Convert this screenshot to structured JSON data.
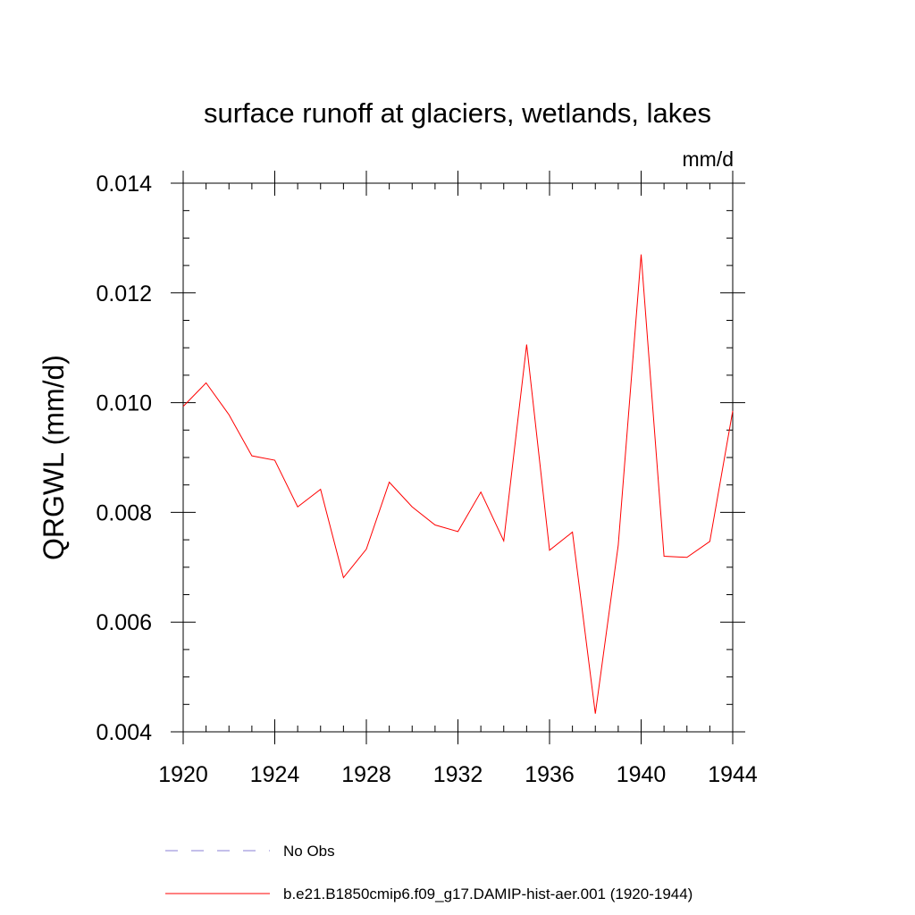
{
  "chart_data": {
    "type": "line",
    "title": "surface runoff at glaciers, wetlands, lakes",
    "units_label": "mm/d",
    "ylabel": "QRGWL  (mm/d)",
    "xlabel": "",
    "xlim": [
      1920,
      1944
    ],
    "ylim": [
      0.004,
      0.014
    ],
    "x_ticks": [
      1920,
      1924,
      1928,
      1932,
      1936,
      1940,
      1944
    ],
    "x_tick_labels": [
      "1920",
      "1924",
      "1928",
      "1932",
      "1936",
      "1940",
      "1944"
    ],
    "y_ticks": [
      0.004,
      0.006,
      0.008,
      0.01,
      0.012,
      0.014
    ],
    "y_tick_labels": [
      "0.004",
      "0.006",
      "0.008",
      "0.010",
      "0.012",
      "0.014"
    ],
    "x_minor_step": 1,
    "y_minor_step": 0.0005,
    "grid": false,
    "legend_position": "bottom",
    "series": [
      {
        "name": "b.e21.B1850cmip6.f09_g17.DAMIP-hist-aer.001 (1920-1944)",
        "color": "#ff0000",
        "style": "solid",
        "x": [
          1920,
          1921,
          1922,
          1923,
          1924,
          1925,
          1926,
          1927,
          1928,
          1929,
          1930,
          1931,
          1932,
          1933,
          1934,
          1935,
          1936,
          1937,
          1938,
          1939,
          1940,
          1941,
          1942,
          1943,
          1944
        ],
        "values": [
          0.00993,
          0.01036,
          0.00978,
          0.00903,
          0.00895,
          0.0081,
          0.00842,
          0.00681,
          0.00733,
          0.00855,
          0.0081,
          0.00777,
          0.00765,
          0.00837,
          0.00748,
          0.01106,
          0.00731,
          0.00764,
          0.00433,
          0.0074,
          0.0127,
          0.0072,
          0.00718,
          0.00747,
          0.00985
        ]
      }
    ],
    "legend": [
      {
        "label": "No Obs",
        "color": "#8a7fd6",
        "style": "dashed"
      },
      {
        "label": "b.e21.B1850cmip6.f09_g17.DAMIP-hist-aer.001 (1920-1944)",
        "color": "#ff0000",
        "style": "solid"
      }
    ]
  }
}
